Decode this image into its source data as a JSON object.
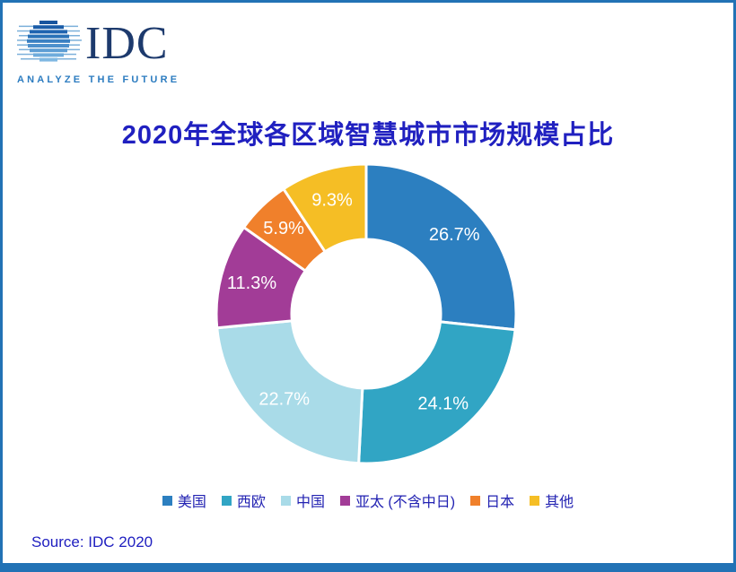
{
  "logo": {
    "brand": "IDC",
    "tagline": "ANALYZE THE FUTURE"
  },
  "title": "2020年全球各区域智慧城市市场规模占比",
  "source": "Source: IDC 2020",
  "colors": {
    "frame_blue": "#2272b5",
    "title_text": "#2020c0",
    "legend_text": "#2222b2",
    "brand_navy": "#1d3a6d",
    "tagline_blue": "#2c7cc0",
    "slice_label": "#ffffff"
  },
  "chart_data": {
    "type": "pie",
    "donut": true,
    "start_angle_deg": 0,
    "direction": "clockwise",
    "title": "2020年全球各区域智慧城市市场规模占比",
    "categories": [
      "美国",
      "西欧",
      "中国",
      "亚太 (不含中日)",
      "日本",
      "其他"
    ],
    "values": [
      26.7,
      24.1,
      22.7,
      11.3,
      5.9,
      9.3
    ],
    "labels": [
      "26.7%",
      "24.1%",
      "22.7%",
      "11.3%",
      "5.9%",
      "9.3%"
    ],
    "colors": [
      "#2c7fc0",
      "#31a5c4",
      "#a9dbe8",
      "#a23c97",
      "#f0802b",
      "#f5be25"
    ],
    "legend_position": "bottom",
    "label_color": "#ffffff"
  }
}
